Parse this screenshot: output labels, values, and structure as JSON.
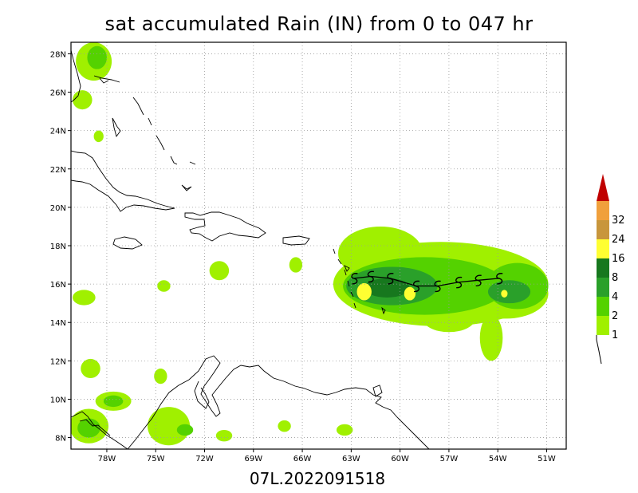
{
  "title": "sat accumulated Rain (IN) from 0 to 047 hr",
  "footer": "07L.2022091518",
  "map_extent": {
    "lon_min": -80.2,
    "lon_max": -49.8,
    "lat_min": 7.4,
    "lat_max": 28.6
  },
  "lon_ticks": [
    {
      "lon": -78,
      "label": "78W"
    },
    {
      "lon": -75,
      "label": "75W"
    },
    {
      "lon": -72,
      "label": "72W"
    },
    {
      "lon": -69,
      "label": "69W"
    },
    {
      "lon": -66,
      "label": "66W"
    },
    {
      "lon": -63,
      "label": "63W"
    },
    {
      "lon": -60,
      "label": "60W"
    },
    {
      "lon": -57,
      "label": "57W"
    },
    {
      "lon": -54,
      "label": "54W"
    },
    {
      "lon": -51,
      "label": "51W"
    }
  ],
  "lat_ticks": [
    {
      "lat": 8,
      "label": "8N"
    },
    {
      "lat": 10,
      "label": "10N"
    },
    {
      "lat": 12,
      "label": "12N"
    },
    {
      "lat": 14,
      "label": "14N"
    },
    {
      "lat": 16,
      "label": "16N"
    },
    {
      "lat": 18,
      "label": "18N"
    },
    {
      "lat": 20,
      "label": "20N"
    },
    {
      "lat": 22,
      "label": "22N"
    },
    {
      "lat": 24,
      "label": "24N"
    },
    {
      "lat": 26,
      "label": "26N"
    },
    {
      "lat": 28,
      "label": "28N"
    }
  ],
  "colorbar": {
    "levels": [
      "1",
      "2",
      "4",
      "8",
      "16",
      "24",
      "32"
    ],
    "colors": [
      "#a0f000",
      "#54d200",
      "#2aa02a",
      "#17781e",
      "#ffff32",
      "#c8963c",
      "#f0a03c",
      "#c00000"
    ]
  },
  "storm_track": {
    "symbol": "tropical-storm-icon",
    "points": [
      {
        "lon": -62.8,
        "lat": 16.3
      },
      {
        "lon": -61.8,
        "lat": 16.4
      },
      {
        "lon": -60.6,
        "lat": 16.3
      },
      {
        "lon": -59.0,
        "lat": 15.9
      },
      {
        "lon": -57.7,
        "lat": 15.9
      },
      {
        "lon": -56.4,
        "lat": 16.1
      },
      {
        "lon": -55.2,
        "lat": 16.2
      },
      {
        "lon": -53.9,
        "lat": 16.3
      }
    ]
  },
  "rain_areas": [
    {
      "level": 1,
      "lon": -57.5,
      "lat": 16.0,
      "rx": 6.6,
      "ry": 2.2
    },
    {
      "level": 1,
      "lon": -61.2,
      "lat": 17.6,
      "rx": 2.6,
      "ry": 1.4
    },
    {
      "level": 1,
      "lon": -53.5,
      "lat": 15.5,
      "rx": 2.6,
      "ry": 1.3
    },
    {
      "level": 1,
      "lon": -54.4,
      "lat": 13.2,
      "rx": 0.7,
      "ry": 1.2
    },
    {
      "level": 1,
      "lon": -57.0,
      "lat": 14.2,
      "rx": 1.6,
      "ry": 0.7
    },
    {
      "level": 2,
      "lon": -58.5,
      "lat": 15.9,
      "rx": 5.0,
      "ry": 1.5
    },
    {
      "level": 2,
      "lon": -52.8,
      "lat": 15.9,
      "rx": 1.9,
      "ry": 1.2
    },
    {
      "level": 4,
      "lon": -60.5,
      "lat": 15.9,
      "rx": 2.8,
      "ry": 1.0
    },
    {
      "level": 4,
      "lon": -53.3,
      "lat": 15.6,
      "rx": 1.3,
      "ry": 0.6
    },
    {
      "level": 8,
      "lon": -60.8,
      "lat": 15.8,
      "rx": 1.4,
      "ry": 0.5
    },
    {
      "level": 16,
      "lon": -62.2,
      "lat": 15.6,
      "rx": 0.45,
      "ry": 0.45
    },
    {
      "level": 16,
      "lon": -59.4,
      "lat": 15.5,
      "rx": 0.35,
      "ry": 0.35
    },
    {
      "level": 16,
      "lon": -53.6,
      "lat": 15.5,
      "rx": 0.2,
      "ry": 0.2
    },
    {
      "level": 1,
      "lon": -78.8,
      "lat": 27.6,
      "rx": 1.1,
      "ry": 1.0
    },
    {
      "level": 2,
      "lon": -78.6,
      "lat": 27.8,
      "rx": 0.6,
      "ry": 0.6
    },
    {
      "level": 1,
      "lon": -79.5,
      "lat": 25.6,
      "rx": 0.6,
      "ry": 0.5
    },
    {
      "level": 1,
      "lon": -78.5,
      "lat": 23.7,
      "rx": 0.3,
      "ry": 0.3
    },
    {
      "level": 1,
      "lon": -79.4,
      "lat": 15.3,
      "rx": 0.7,
      "ry": 0.4
    },
    {
      "level": 1,
      "lon": -71.1,
      "lat": 16.7,
      "rx": 0.6,
      "ry": 0.5
    },
    {
      "level": 1,
      "lon": -66.4,
      "lat": 17.0,
      "rx": 0.4,
      "ry": 0.4
    },
    {
      "level": 1,
      "lon": -74.5,
      "lat": 15.9,
      "rx": 0.4,
      "ry": 0.3
    },
    {
      "level": 1,
      "lon": -79.0,
      "lat": 11.6,
      "rx": 0.6,
      "ry": 0.5
    },
    {
      "level": 1,
      "lon": -77.6,
      "lat": 9.9,
      "rx": 1.1,
      "ry": 0.5
    },
    {
      "level": 2,
      "lon": -77.6,
      "lat": 9.9,
      "rx": 0.6,
      "ry": 0.3
    },
    {
      "level": 1,
      "lon": -79.1,
      "lat": 8.6,
      "rx": 1.2,
      "ry": 0.9
    },
    {
      "level": 2,
      "lon": -79.1,
      "lat": 8.5,
      "rx": 0.7,
      "ry": 0.5
    },
    {
      "level": 1,
      "lon": -74.2,
      "lat": 8.6,
      "rx": 1.3,
      "ry": 1.0
    },
    {
      "level": 2,
      "lon": -73.2,
      "lat": 8.4,
      "rx": 0.5,
      "ry": 0.3
    },
    {
      "level": 1,
      "lon": -74.7,
      "lat": 11.2,
      "rx": 0.4,
      "ry": 0.4
    },
    {
      "level": 1,
      "lon": -70.8,
      "lat": 8.1,
      "rx": 0.5,
      "ry": 0.3
    },
    {
      "level": 1,
      "lon": -67.1,
      "lat": 8.6,
      "rx": 0.4,
      "ry": 0.3
    },
    {
      "level": 1,
      "lon": -63.4,
      "lat": 8.4,
      "rx": 0.5,
      "ry": 0.3
    }
  ]
}
